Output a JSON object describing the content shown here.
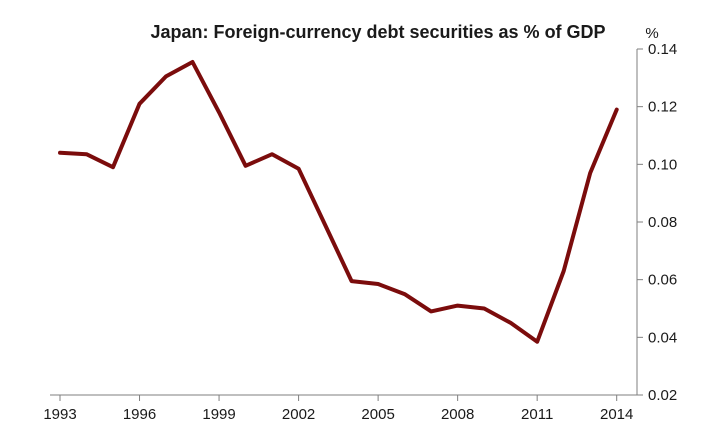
{
  "chart_data": {
    "type": "line",
    "title": "Japan: Foreign-currency debt securities as % of GDP",
    "ylabel": "%",
    "xlabel": "",
    "ylim": [
      0.02,
      0.14
    ],
    "yticks": [
      "0.02",
      "0.04",
      "0.06",
      "0.08",
      "0.10",
      "0.12",
      "0.14"
    ],
    "xticks": [
      "1993",
      "1996",
      "1999",
      "2002",
      "2005",
      "2008",
      "2011",
      "2014"
    ],
    "xlim": [
      1993,
      2014.2
    ],
    "y_axis_position": "right",
    "grid": false,
    "series": [
      {
        "color": "#7b0c0c",
        "x": [
          1993,
          1994,
          1995,
          1996,
          1997,
          1998,
          1999,
          2000,
          2001,
          2002,
          2003,
          2004,
          2005,
          2006,
          2007,
          2008,
          2009,
          2010,
          2011,
          2012,
          2013,
          2014
        ],
        "values": [
          0.104,
          0.1035,
          0.099,
          0.121,
          0.1305,
          0.1355,
          0.118,
          0.0995,
          0.1035,
          0.0985,
          0.079,
          0.0595,
          0.0585,
          0.055,
          0.049,
          0.051,
          0.05,
          0.045,
          0.0385,
          0.063,
          0.097,
          0.119
        ]
      }
    ]
  }
}
